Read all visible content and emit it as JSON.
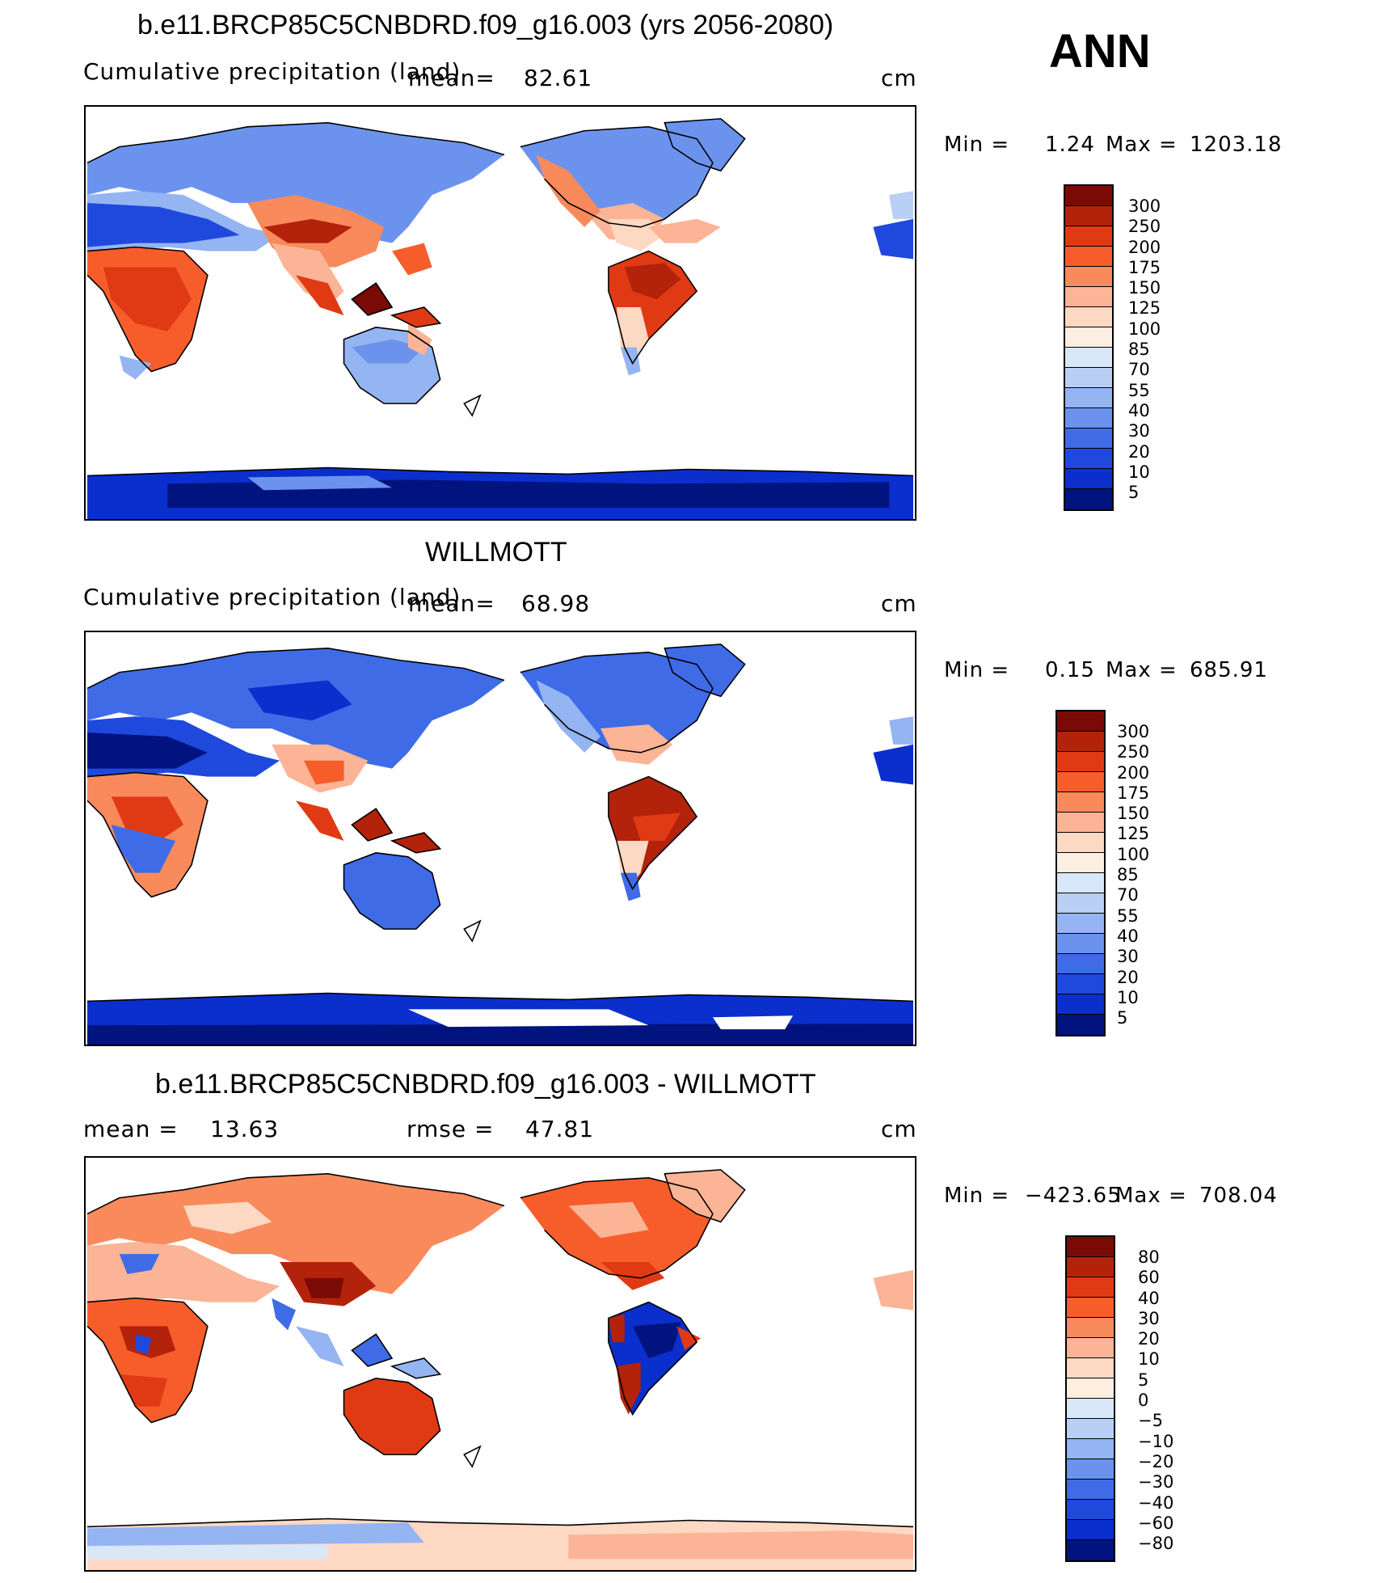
{
  "season": "ANN",
  "colors": {
    "levels": [
      "#7a0a05",
      "#b3220b",
      "#e03a14",
      "#f75d2b",
      "#f98a5c",
      "#fbb495",
      "#fdd8c3",
      "#fdeee2",
      "#d8e8f8",
      "#b9d0f4",
      "#94b4f2",
      "#6b93ee",
      "#3f6be6",
      "#1f49dd",
      "#0a2fcc",
      "#0520a8",
      "#01137e"
    ],
    "ocean": "#ffffff",
    "coast": "#000000"
  },
  "panels": [
    {
      "title": "b.e11.BRCP85C5CNBDRD.f09_g16.003 (yrs 2056-2080)",
      "subtitle": "Cumulative precipitation (land)",
      "mean_label": "mean=",
      "mean_value": "82.61",
      "units": "cm",
      "min_label": "Min =",
      "min_value": "1.24",
      "max_label": "Max =",
      "max_value": "1203.18",
      "colorbar_labels": [
        "300",
        "250",
        "200",
        "175",
        "150",
        "125",
        "100",
        "85",
        "70",
        "55",
        "40",
        "30",
        "20",
        "10",
        "5"
      ]
    },
    {
      "title": "WILLMOTT",
      "subtitle": "Cumulative precipitation (land)",
      "mean_label": "mean=",
      "mean_value": "68.98",
      "units": "cm",
      "min_label": "Min =",
      "min_value": "0.15",
      "max_label": "Max =",
      "max_value": "685.91",
      "colorbar_labels": [
        "300",
        "250",
        "200",
        "175",
        "150",
        "125",
        "100",
        "85",
        "70",
        "55",
        "40",
        "30",
        "20",
        "10",
        "5"
      ]
    },
    {
      "title": "b.e11.BRCP85C5CNBDRD.f09_g16.003 - WILLMOTT",
      "mean_label": "mean =",
      "mean_value": "13.63",
      "rmse_label": "rmse =",
      "rmse_value": "47.81",
      "units": "cm",
      "min_label": "Min =",
      "min_value": "−423.65",
      "max_label": "Max =",
      "max_value": "708.04",
      "colorbar_labels": [
        "80",
        "60",
        "40",
        "30",
        "20",
        "10",
        "5",
        "0",
        "−5",
        "−10",
        "−20",
        "−30",
        "−40",
        "−60",
        "−80"
      ]
    }
  ]
}
